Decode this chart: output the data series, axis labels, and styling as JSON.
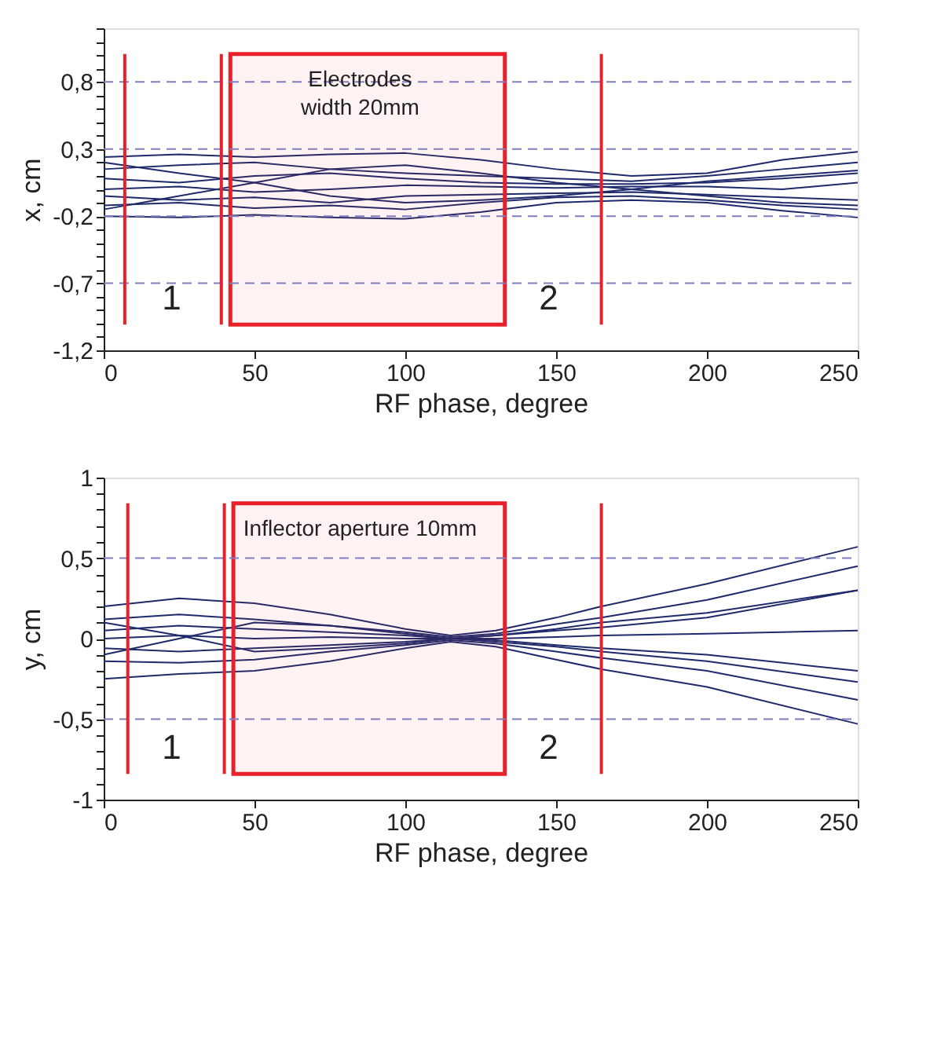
{
  "chart_data": [
    {
      "type": "line",
      "xlabel": "RF phase, degree",
      "ylabel": "x, cm",
      "marker": "none",
      "line_style": "solid",
      "grid": false,
      "x": [
        0,
        25,
        50,
        75,
        100,
        125,
        150,
        175,
        200,
        225,
        250
      ],
      "xlim": [
        0,
        250
      ],
      "xticks": [
        0,
        50,
        100,
        150,
        200,
        250
      ],
      "ylim": [
        -1.2,
        1.2
      ],
      "yticks": [
        {
          "value": -1.2,
          "label": "-1,2"
        },
        {
          "value": -1.1,
          "label": null
        },
        {
          "value": -1.0,
          "label": null
        },
        {
          "value": -0.9,
          "label": null
        },
        {
          "value": -0.8,
          "label": null
        },
        {
          "value": -0.7,
          "label": "-0,7"
        },
        {
          "value": -0.6,
          "label": null
        },
        {
          "value": -0.5,
          "label": null
        },
        {
          "value": -0.4,
          "label": null
        },
        {
          "value": -0.3,
          "label": null
        },
        {
          "value": -0.2,
          "label": "-0,2"
        },
        {
          "value": -0.1,
          "label": null
        },
        {
          "value": 0.0,
          "label": null
        },
        {
          "value": 0.1,
          "label": null
        },
        {
          "value": 0.2,
          "label": null
        },
        {
          "value": 0.3,
          "label": "0,3"
        },
        {
          "value": 0.4,
          "label": null
        },
        {
          "value": 0.5,
          "label": null
        },
        {
          "value": 0.6,
          "label": null
        },
        {
          "value": 0.7,
          "label": null
        },
        {
          "value": 0.8,
          "label": "0,8"
        },
        {
          "value": 0.9,
          "label": null
        },
        {
          "value": 1.0,
          "label": null
        },
        {
          "value": 1.1,
          "label": null
        },
        {
          "value": 1.2,
          "label": null
        }
      ],
      "series": [
        {
          "color": "#1f2a6b",
          "values": [
            0.24,
            0.26,
            0.24,
            0.26,
            0.27,
            0.22,
            0.15,
            0.1,
            0.12,
            0.22,
            0.28
          ]
        },
        {
          "color": "#1f2a6b",
          "values": [
            0.15,
            0.18,
            0.2,
            0.15,
            0.12,
            0.1,
            0.08,
            0.06,
            0.1,
            0.15,
            0.2
          ]
        },
        {
          "color": "#1f2a6b",
          "values": [
            0.08,
            0.05,
            0.1,
            0.12,
            0.08,
            0.05,
            0.04,
            0.04,
            0.05,
            0.08,
            0.12
          ]
        },
        {
          "color": "#1f2a6b",
          "values": [
            0.0,
            0.02,
            -0.02,
            0.0,
            0.03,
            0.02,
            0.01,
            0.02,
            0.02,
            0.0,
            0.05
          ]
        },
        {
          "color": "#1f2a6b",
          "values": [
            -0.05,
            -0.08,
            -0.06,
            -0.1,
            -0.05,
            -0.04,
            -0.03,
            -0.02,
            -0.04,
            -0.06,
            -0.08
          ]
        },
        {
          "color": "#1f2a6b",
          "values": [
            -0.12,
            -0.1,
            -0.14,
            -0.12,
            -0.15,
            -0.1,
            -0.06,
            -0.05,
            -0.08,
            -0.12,
            -0.15
          ]
        },
        {
          "color": "#1f2a6b",
          "values": [
            -0.2,
            -0.21,
            -0.19,
            -0.21,
            -0.22,
            -0.17,
            -0.1,
            -0.08,
            -0.1,
            -0.16,
            -0.21
          ]
        },
        {
          "color": "#1f2a6b",
          "values": [
            0.2,
            0.12,
            0.05,
            -0.05,
            -0.1,
            -0.08,
            -0.05,
            0.0,
            0.06,
            0.1,
            0.14
          ]
        },
        {
          "color": "#1f2a6b",
          "values": [
            -0.15,
            -0.05,
            0.05,
            0.15,
            0.18,
            0.12,
            0.05,
            0.0,
            -0.05,
            -0.1,
            -0.12
          ]
        }
      ],
      "ref_lines": [
        {
          "axis": "y",
          "value": 0.8,
          "color": "#7f7fc0",
          "line_style": "dashed"
        },
        {
          "axis": "y",
          "value": 0.3,
          "color": "#7f7fc0",
          "line_style": "dashed"
        },
        {
          "axis": "y",
          "value": -0.2,
          "color": "#7f7fc0",
          "line_style": "dashed"
        },
        {
          "axis": "y",
          "value": -0.7,
          "color": "#7f7fc0",
          "line_style": "dashed"
        },
        {
          "axis": "x",
          "value": 7,
          "color": "#e8202a",
          "line_style": "solid"
        },
        {
          "axis": "x",
          "value": 39,
          "color": "#e8202a",
          "line_style": "solid"
        },
        {
          "axis": "x",
          "value": 165,
          "color": "#e8202a",
          "line_style": "solid"
        }
      ],
      "bands": [
        {
          "axis": "x",
          "from": 42,
          "to": 133,
          "color": "#e8202a"
        }
      ],
      "annotations": [
        "Electrodes\nwidth 20mm",
        "1",
        "2"
      ]
    },
    {
      "type": "line",
      "xlabel": "RF phase, degree",
      "ylabel": "y, cm",
      "marker": "none",
      "line_style": "solid",
      "grid": false,
      "x": [
        0,
        25,
        50,
        75,
        100,
        115,
        130,
        150,
        165,
        200,
        250
      ],
      "xlim": [
        0,
        250
      ],
      "xticks": [
        0,
        50,
        100,
        150,
        200,
        250
      ],
      "ylim": [
        -1,
        1
      ],
      "yticks": [
        -1,
        {
          "value": -0.9,
          "label": null
        },
        {
          "value": -0.8,
          "label": null
        },
        {
          "value": -0.7,
          "label": null
        },
        {
          "value": -0.6,
          "label": null
        },
        {
          "value": -0.5,
          "label": "-0,5"
        },
        {
          "value": -0.4,
          "label": null
        },
        {
          "value": -0.3,
          "label": null
        },
        {
          "value": -0.2,
          "label": null
        },
        {
          "value": -0.1,
          "label": null
        },
        0,
        {
          "value": 0.1,
          "label": null
        },
        {
          "value": 0.2,
          "label": null
        },
        {
          "value": 0.3,
          "label": null
        },
        {
          "value": 0.4,
          "label": null
        },
        {
          "value": 0.5,
          "label": "0,5"
        },
        {
          "value": 0.6,
          "label": null
        },
        {
          "value": 0.7,
          "label": null
        },
        {
          "value": 0.8,
          "label": null
        },
        {
          "value": 0.9,
          "label": null
        },
        1
      ],
      "series": [
        {
          "color": "#1f2a6b",
          "values": [
            0.2,
            0.25,
            0.22,
            0.15,
            0.06,
            0.02,
            0.05,
            0.13,
            0.2,
            0.34,
            0.57
          ]
        },
        {
          "color": "#1f2a6b",
          "values": [
            0.12,
            0.15,
            0.12,
            0.08,
            0.04,
            0.01,
            0.03,
            0.09,
            0.13,
            0.24,
            0.45
          ]
        },
        {
          "color": "#1f2a6b",
          "values": [
            0.05,
            0.08,
            0.06,
            0.04,
            0.02,
            0.0,
            0.02,
            0.05,
            0.07,
            0.13,
            0.3
          ]
        },
        {
          "color": "#1f2a6b",
          "values": [
            0.0,
            0.02,
            0.0,
            0.01,
            0.0,
            0.0,
            0.0,
            0.01,
            0.02,
            0.03,
            0.05
          ]
        },
        {
          "color": "#1f2a6b",
          "values": [
            -0.06,
            -0.08,
            -0.06,
            -0.04,
            -0.02,
            0.0,
            -0.01,
            -0.04,
            -0.06,
            -0.1,
            -0.2
          ]
        },
        {
          "color": "#1f2a6b",
          "values": [
            -0.14,
            -0.15,
            -0.13,
            -0.08,
            -0.04,
            -0.01,
            -0.03,
            -0.08,
            -0.12,
            -0.2,
            -0.38
          ]
        },
        {
          "color": "#1f2a6b",
          "values": [
            -0.25,
            -0.22,
            -0.2,
            -0.14,
            -0.06,
            -0.02,
            -0.05,
            -0.13,
            -0.19,
            -0.3,
            -0.53
          ]
        },
        {
          "color": "#1f2a6b",
          "values": [
            0.1,
            0.02,
            -0.08,
            -0.06,
            -0.03,
            0.0,
            0.02,
            0.06,
            0.1,
            0.16,
            0.3
          ]
        },
        {
          "color": "#1f2a6b",
          "values": [
            -0.1,
            0.0,
            0.1,
            0.08,
            0.03,
            0.0,
            -0.02,
            -0.05,
            -0.08,
            -0.14,
            -0.27
          ]
        }
      ],
      "ref_lines": [
        {
          "axis": "y",
          "value": 0.5,
          "color": "#7f7fc0",
          "line_style": "dashed"
        },
        {
          "axis": "y",
          "value": -0.5,
          "color": "#7f7fc0",
          "line_style": "dashed"
        },
        {
          "axis": "x",
          "value": 8,
          "color": "#e8202a",
          "line_style": "solid"
        },
        {
          "axis": "x",
          "value": 40,
          "color": "#e8202a",
          "line_style": "solid"
        },
        {
          "axis": "x",
          "value": 165,
          "color": "#e8202a",
          "line_style": "solid"
        }
      ],
      "bands": [
        {
          "axis": "x",
          "from": 43,
          "to": 133,
          "color": "#e8202a"
        }
      ],
      "annotations": [
        "Inflector aperture 10mm",
        "1",
        "2"
      ]
    }
  ]
}
